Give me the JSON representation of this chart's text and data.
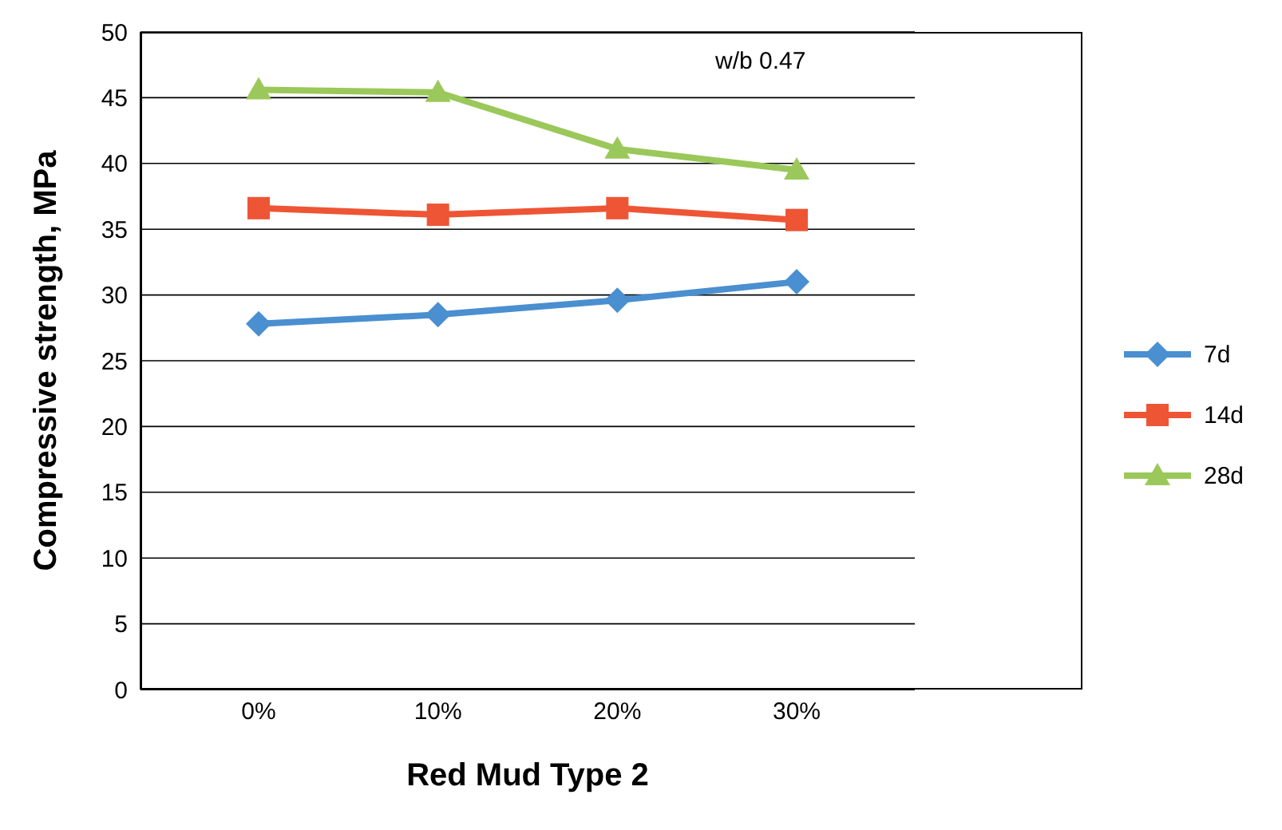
{
  "chart_data": {
    "type": "line",
    "xlabel": "Red Mud Type 2",
    "ylabel": "Compressive strength, MPa",
    "categories": [
      "0%",
      "10%",
      "20%",
      "30%"
    ],
    "series": [
      {
        "name": "7d",
        "color": "#4a8fd0",
        "marker": "diamond",
        "values": [
          27.8,
          28.5,
          29.6,
          31.0
        ]
      },
      {
        "name": "14d",
        "color": "#ee5535",
        "marker": "square",
        "values": [
          36.6,
          36.1,
          36.6,
          35.7
        ]
      },
      {
        "name": "28d",
        "color": "#9bc85a",
        "marker": "triangle",
        "values": [
          45.6,
          45.4,
          41.1,
          39.5
        ]
      }
    ],
    "ylim": [
      0,
      50
    ],
    "yticks": [
      0,
      5,
      10,
      15,
      20,
      25,
      30,
      35,
      40,
      45,
      50
    ],
    "grid": "y",
    "legend": "right",
    "annotations": [
      "w/b 0.47"
    ]
  }
}
